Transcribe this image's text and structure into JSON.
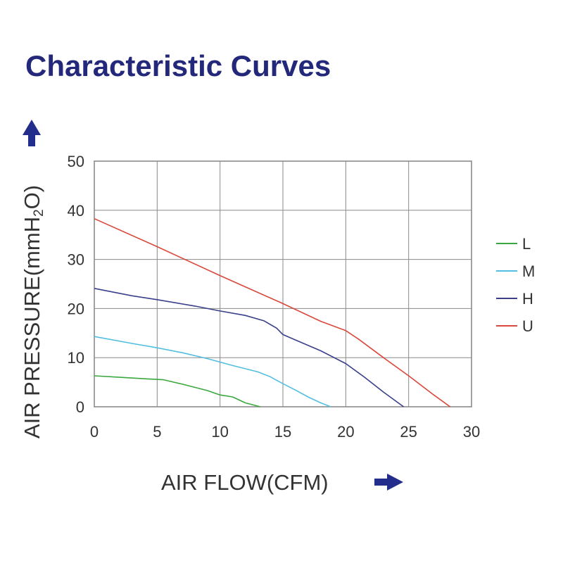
{
  "chart_data": {
    "type": "line",
    "title": "Characteristic Curves",
    "xlabel": "AIR FLOW(CFM)",
    "ylabel_prefix": "AIR PRESSURE(mmH",
    "ylabel_sub": "2",
    "ylabel_suffix": "O)",
    "xlim": [
      0,
      30
    ],
    "ylim": [
      0,
      50
    ],
    "x_ticks": [
      "0",
      "5",
      "10",
      "15",
      "20",
      "25",
      "30"
    ],
    "y_ticks": [
      "0",
      "10",
      "20",
      "30",
      "40",
      "50"
    ],
    "grid": true,
    "legend_position": "right",
    "series": [
      {
        "name": "L",
        "color": "#3aa83f",
        "points": [
          [
            0,
            6.3
          ],
          [
            2,
            6.0
          ],
          [
            4,
            5.7
          ],
          [
            5.5,
            5.5
          ],
          [
            7,
            4.6
          ],
          [
            9,
            3.3
          ],
          [
            10,
            2.4
          ],
          [
            11,
            2.0
          ],
          [
            12,
            0.8
          ],
          [
            13.2,
            0
          ]
        ]
      },
      {
        "name": "M",
        "color": "#52bfe0",
        "points": [
          [
            0,
            14.3
          ],
          [
            3,
            12.9
          ],
          [
            5,
            12.0
          ],
          [
            7,
            11.0
          ],
          [
            9,
            9.8
          ],
          [
            11,
            8.4
          ],
          [
            13,
            7.1
          ],
          [
            14,
            6.1
          ],
          [
            15,
            4.7
          ],
          [
            16,
            3.4
          ],
          [
            17,
            2.0
          ],
          [
            18,
            0.8
          ],
          [
            18.8,
            0
          ]
        ]
      },
      {
        "name": "H",
        "color": "#3a3f8a",
        "points": [
          [
            0,
            24.1
          ],
          [
            3,
            22.6
          ],
          [
            5,
            21.8
          ],
          [
            8,
            20.5
          ],
          [
            10,
            19.5
          ],
          [
            12,
            18.6
          ],
          [
            13.5,
            17.5
          ],
          [
            14.5,
            16.0
          ],
          [
            15,
            14.7
          ],
          [
            16,
            13.6
          ],
          [
            18,
            11.4
          ],
          [
            20,
            8.8
          ],
          [
            21.5,
            6.0
          ],
          [
            23,
            3.0
          ],
          [
            24.6,
            0
          ]
        ]
      },
      {
        "name": "U",
        "color": "#d9483b",
        "points": [
          [
            0,
            38.3
          ],
          [
            5,
            32.6
          ],
          [
            10,
            26.7
          ],
          [
            15,
            21.0
          ],
          [
            18,
            17.4
          ],
          [
            20,
            15.5
          ],
          [
            21,
            13.8
          ],
          [
            23,
            10.0
          ],
          [
            25,
            6.3
          ],
          [
            27,
            2.4
          ],
          [
            28.3,
            0
          ]
        ]
      }
    ]
  },
  "arrow_color": "#232e8c",
  "title_color": "#24287a"
}
